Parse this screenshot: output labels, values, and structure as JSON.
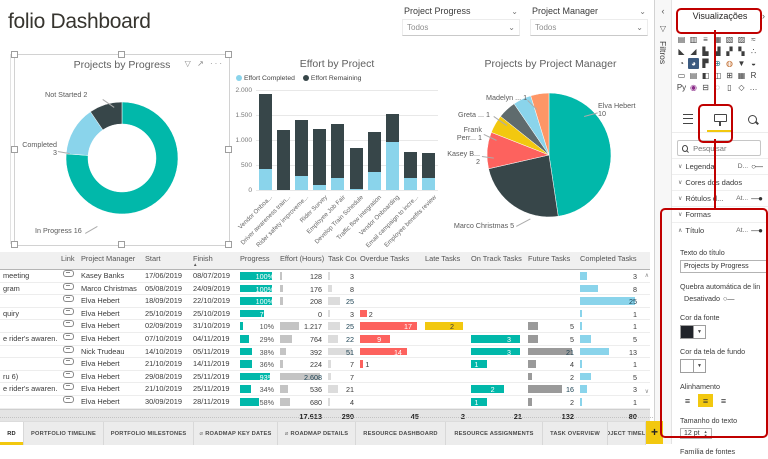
{
  "page": {
    "title": "folio Dashboard"
  },
  "slicers": [
    {
      "label": "Project Progress",
      "value": "Todos"
    },
    {
      "label": "Project Manager",
      "value": "Todos"
    }
  ],
  "chart_data": [
    {
      "type": "donut",
      "title": "Projects by Progress",
      "labels": [
        "In Progress",
        "Completed",
        "Not Started"
      ],
      "values": [
        16,
        3,
        2
      ],
      "colors": [
        "#01B8AA",
        "#8AD4EB",
        "#374649"
      ],
      "point_labels": [
        "Not Started 2",
        "Completed 3",
        "In Progress 16"
      ],
      "legend_position": "data-labels"
    },
    {
      "type": "bar",
      "stacked": true,
      "title": "Effort by Project",
      "categories": [
        "Vendor Onboa...",
        "Driver awareness train...",
        "Rider safety improveme...",
        "Rider Survey",
        "Employee Job Fair",
        "Develop Train Schedule",
        "Traffic flow integration",
        "Vendor Onboarding",
        "Email campaign to incre...",
        "Employee benefits review"
      ],
      "series": [
        {
          "name": "Effort Completed",
          "color": "#8AD4EB",
          "values": [
            430,
            0,
            290,
            110,
            250,
            30,
            360,
            960,
            250,
            240
          ]
        },
        {
          "name": "Effort Remaining",
          "color": "#374649",
          "values": [
            1500,
            1210,
            1120,
            1110,
            1080,
            810,
            800,
            570,
            520,
            500
          ]
        }
      ],
      "ylim": [
        0,
        2000
      ],
      "yticks": [
        "2.000",
        "1.500",
        "1.000",
        "500",
        "0"
      ],
      "grid": true,
      "legend_position": "top-left"
    },
    {
      "type": "pie",
      "title": "Projects by Project Manager",
      "labels": [
        "Elva Hebert",
        "Marco Christmas",
        "Kasey B...",
        "Frank Perr...",
        "Greta ...",
        "Madelyn ...",
        ""
      ],
      "values": [
        10,
        5,
        2,
        1,
        1,
        1,
        1
      ],
      "colors": [
        "#01B8AA",
        "#374649",
        "#FD625E",
        "#F2C80F",
        "#5F6B6D",
        "#8AD4EB",
        "#FE9666"
      ],
      "point_labels": [
        "Elva Hebert 10",
        "Marco Christmas 5",
        "Kasey B... 2",
        "Frank Perr... 1",
        "Greta ... 1",
        "Madelyn ... 1"
      ]
    }
  ],
  "table": {
    "columns": [
      "",
      "Link",
      "Project Manager",
      "Start",
      "Finish",
      "Progress",
      "Effort (Hours)",
      "Task Count",
      "Overdue Tasks",
      "Late Tasks",
      "On Track Tasks",
      "Future Tasks",
      "Completed Tasks"
    ],
    "sort_column": "Finish",
    "rows": [
      {
        "project": "meeting",
        "manager": "Kasey Banks",
        "start": "17/06/2019",
        "finish": "08/07/2019",
        "progress": 100,
        "effort": "128",
        "effort_v": 128,
        "tasks": 3,
        "overdue": null,
        "late": null,
        "ontrack": null,
        "future": null,
        "completed": 3
      },
      {
        "project": "gram",
        "manager": "Marco Christmas",
        "start": "05/08/2019",
        "finish": "24/09/2019",
        "progress": 100,
        "effort": "176",
        "effort_v": 176,
        "tasks": 8,
        "overdue": null,
        "late": null,
        "ontrack": null,
        "future": null,
        "completed": 8
      },
      {
        "project": "",
        "manager": "Elva Hebert",
        "start": "18/09/2019",
        "finish": "22/10/2019",
        "progress": 100,
        "effort": "208",
        "effort_v": 208,
        "tasks": 25,
        "overdue": null,
        "late": null,
        "ontrack": null,
        "future": null,
        "completed": 25
      },
      {
        "project": "quiry",
        "manager": "Elva Hebert",
        "start": "25/10/2019",
        "finish": "25/10/2019",
        "progress": 75,
        "effort": "0",
        "effort_v": 0,
        "tasks": 3,
        "overdue": 2,
        "late": null,
        "ontrack": null,
        "future": null,
        "completed": 1
      },
      {
        "project": "",
        "manager": "Elva Hebert",
        "start": "02/09/2019",
        "finish": "31/10/2019",
        "progress": 10,
        "effort": "1.217",
        "effort_v": 1217,
        "tasks": 25,
        "overdue": 17,
        "late": 2,
        "ontrack": null,
        "future": 5,
        "completed": 1
      },
      {
        "project": "e rider's awaren...",
        "manager": "Elva Hebert",
        "start": "07/10/2019",
        "finish": "04/11/2019",
        "progress": 29,
        "effort": "764",
        "effort_v": 764,
        "tasks": 22,
        "overdue": 9,
        "late": null,
        "ontrack": 3,
        "future": 5,
        "completed": 5
      },
      {
        "project": "",
        "manager": "Nick Trudeau",
        "start": "14/10/2019",
        "finish": "05/11/2019",
        "progress": 38,
        "effort": "392",
        "effort_v": 392,
        "tasks": 51,
        "overdue": 14,
        "late": null,
        "ontrack": 3,
        "future": 21,
        "completed": 13
      },
      {
        "project": "",
        "manager": "Elva Hebert",
        "start": "21/10/2019",
        "finish": "14/11/2019",
        "progress": 36,
        "effort": "224",
        "effort_v": 224,
        "tasks": 7,
        "overdue": 1,
        "late": null,
        "ontrack": 1,
        "future": 4,
        "completed": 1
      },
      {
        "project": "ru 6)",
        "manager": "Elva Hebert",
        "start": "29/08/2019",
        "finish": "25/11/2019",
        "progress": 93,
        "effort": "2.608",
        "effort_v": 2608,
        "tasks": 7,
        "overdue": null,
        "late": null,
        "ontrack": null,
        "future": 2,
        "completed": 5
      },
      {
        "project": "e rider's awaren...",
        "manager": "Elva Hebert",
        "start": "21/10/2019",
        "finish": "25/11/2019",
        "progress": 34,
        "effort": "536",
        "effort_v": 536,
        "tasks": 21,
        "overdue": null,
        "late": null,
        "ontrack": 2,
        "future": 16,
        "completed": 3
      },
      {
        "project": "",
        "manager": "Elva Hebert",
        "start": "30/09/2019",
        "finish": "28/11/2019",
        "progress": 58,
        "effort": "680",
        "effort_v": 680,
        "tasks": 4,
        "overdue": null,
        "late": null,
        "ontrack": 1,
        "future": 2,
        "completed": 1
      }
    ],
    "totals": {
      "effort": "17.613",
      "tasks": "280",
      "overdue": "45",
      "late": "2",
      "ontrack": "21",
      "future": "132",
      "completed": "80"
    }
  },
  "tabs": {
    "items": [
      {
        "label": "RD",
        "active": true,
        "icon": false
      },
      {
        "label": "PORTFOLIO TIMELINE",
        "icon": false
      },
      {
        "label": "PORTFOLIO MILESTONES",
        "icon": false
      },
      {
        "label": "ROADMAP KEY DATES",
        "icon": true
      },
      {
        "label": "ROADMAP DETAILS",
        "icon": true
      },
      {
        "label": "RESOURCE DASHBOARD",
        "icon": false
      },
      {
        "label": "RESOURCE ASSIGNMENTS",
        "icon": false
      },
      {
        "label": "TASK OVERVIEW",
        "icon": false
      },
      {
        "label": "PROJECT TIMELINE",
        "icon": false
      }
    ],
    "add_label": "+"
  },
  "sidebar": {
    "filters_label": "Filtros",
    "viz_header": "Visualizações",
    "search_placeholder": "Pesquisar",
    "viz_icons": [
      {
        "name": "stacked-bar-chart",
        "char": "▤"
      },
      {
        "name": "stacked-column-chart",
        "char": "▥"
      },
      {
        "name": "clustered-bar-chart",
        "char": "≡"
      },
      {
        "name": "clustered-column-chart",
        "char": "▦"
      },
      {
        "name": "100-stacked-bar-chart",
        "char": "▧"
      },
      {
        "name": "100-stacked-column-chart",
        "char": "▨"
      },
      {
        "name": "line-chart",
        "char": "≈"
      },
      {
        "name": "area-chart",
        "char": "◣"
      },
      {
        "name": "stacked-area-chart",
        "char": "◢"
      },
      {
        "name": "line-clustered-column-chart",
        "char": "▙"
      },
      {
        "name": "line-stacked-column-chart",
        "char": "▟"
      },
      {
        "name": "ribbon-chart",
        "char": "▞"
      },
      {
        "name": "waterfall-chart",
        "char": "▚"
      },
      {
        "name": "scatter-chart",
        "char": "∴"
      },
      {
        "name": "pie-chart",
        "char": "◔"
      },
      {
        "name": "donut-chart",
        "char": "◕",
        "selected": true
      },
      {
        "name": "treemap",
        "char": "▛"
      },
      {
        "name": "map",
        "char": "⊕",
        "color": "#2a7b88"
      },
      {
        "name": "filled-map",
        "char": "◍",
        "color": "#c06a2b"
      },
      {
        "name": "funnel",
        "char": "▼"
      },
      {
        "name": "gauge",
        "char": "◒"
      },
      {
        "name": "card",
        "char": "▭"
      },
      {
        "name": "multi-row-card",
        "char": "▤"
      },
      {
        "name": "kpi",
        "char": "◧"
      },
      {
        "name": "slicer",
        "char": "◫"
      },
      {
        "name": "table",
        "char": "⊞"
      },
      {
        "name": "matrix",
        "char": "▦"
      },
      {
        "name": "r-script",
        "char": "R"
      },
      {
        "name": "python-script",
        "char": "Py"
      },
      {
        "name": "key-influencers",
        "char": "◉",
        "color": "#8a2a88"
      },
      {
        "name": "decomposition-tree",
        "char": "⊟"
      },
      {
        "name": "qa",
        "char": "◌"
      },
      {
        "name": "paginated-report",
        "char": "▯"
      },
      {
        "name": "power-apps",
        "char": "◇"
      },
      {
        "name": "more-visuals",
        "char": "…"
      }
    ],
    "pane_tabs": [
      {
        "name": "fields"
      },
      {
        "name": "format",
        "selected": true
      },
      {
        "name": "analytics"
      }
    ],
    "sections": [
      {
        "label": "Legenda",
        "state": "D...",
        "toggle": "off"
      },
      {
        "label": "Cores dos dados",
        "state": "",
        "toggle": "none"
      },
      {
        "label": "Rótulos d...",
        "state": "At...",
        "toggle": "on"
      },
      {
        "label": "Formas",
        "state": "",
        "toggle": "none"
      },
      {
        "label": "Título",
        "state": "At...",
        "toggle": "on",
        "expanded": true
      }
    ],
    "title_section": {
      "field_label": "Texto do título",
      "field_value": "Projects by Progress",
      "wrap_label": "Quebra automática de lin...",
      "wrap_state": "Desativado",
      "font_color_label": "Cor da fonte",
      "bg_label": "Cor da tela de fundo",
      "align_label": "Alinhamento",
      "size_label": "Tamanho do texto",
      "size_value": "12 pt",
      "font_family_label": "Família de fontes"
    }
  },
  "colors": {
    "accent_yellow": "#F2C80F",
    "teal": "#01B8AA",
    "dark": "#374649",
    "red": "#FD625E",
    "gray": "#5F6B6D",
    "light_blue": "#8AD4EB",
    "orange": "#FE9666",
    "annotation_red": "#C00000"
  }
}
